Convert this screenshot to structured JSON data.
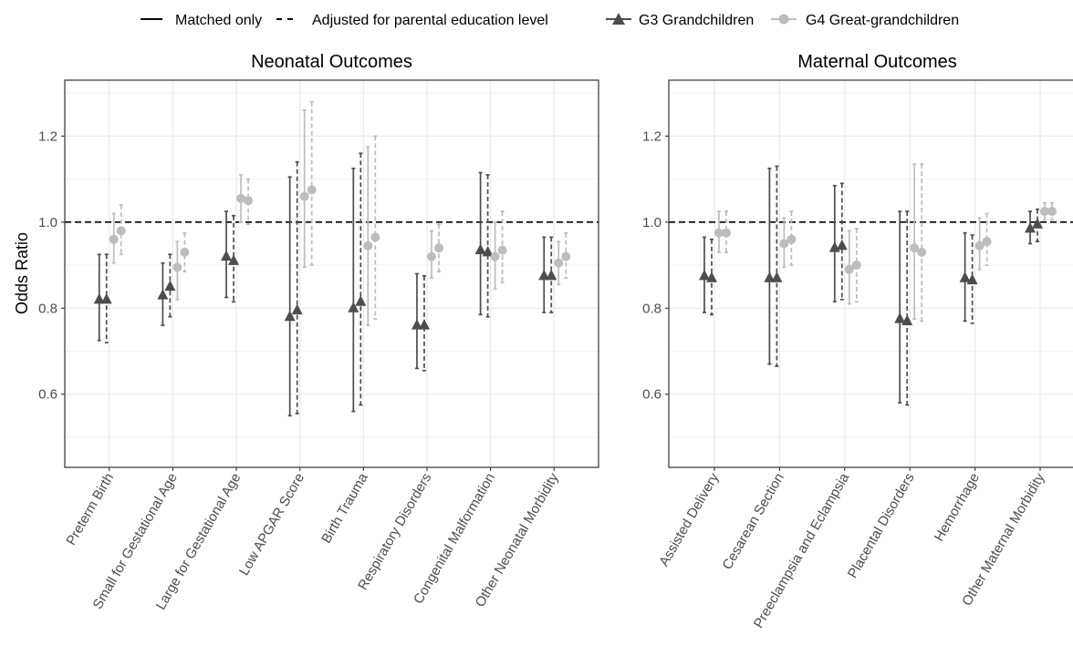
{
  "legend": {
    "linetype": [
      {
        "label": "Matched only",
        "dash": "solid"
      },
      {
        "label": "Adjusted for parental education level",
        "dash": "dashed"
      }
    ],
    "generation": [
      {
        "label": "G3 Grandchildren",
        "shape": "triangle",
        "color": "#4d4d4d"
      },
      {
        "label": "G4 Great-grandchildren",
        "shape": "circle",
        "color": "#bdbdbd"
      }
    ]
  },
  "chart_data": [
    {
      "type": "scatter",
      "subtype": "point-range (odds ratio with confidence interval)",
      "title": "Neonatal Outcomes",
      "ylabel": "Odds Ratio",
      "xlabel": "",
      "ylim": [
        0.43,
        1.33
      ],
      "yticks": [
        0.6,
        0.8,
        1.0,
        1.2
      ],
      "ytick_labels": [
        "0.6",
        "0.8",
        "1.0",
        "1.2"
      ],
      "reference_line": 1.0,
      "grid": true,
      "legend_position": "top",
      "categories": [
        "Preterm Birth",
        "Small for Gestational Age",
        "Large for Gestational Age",
        "Low APGAR Score",
        "Birth Trauma",
        "Respiratory Disorders",
        "Congenital Malformation",
        "Other Neonatal Morbidity"
      ],
      "series": [
        {
          "name": "G3 Grandchildren, Matched only",
          "generation": "G3",
          "adjustment": "matched",
          "values": [
            0.82,
            0.83,
            0.92,
            0.78,
            0.8,
            0.76,
            0.935,
            0.875
          ],
          "lower": [
            0.725,
            0.76,
            0.825,
            0.55,
            0.56,
            0.66,
            0.785,
            0.79
          ],
          "upper": [
            0.925,
            0.905,
            1.025,
            1.105,
            1.125,
            0.88,
            1.115,
            0.965
          ]
        },
        {
          "name": "G3 Grandchildren, Adjusted for parental education level",
          "generation": "G3",
          "adjustment": "adjusted",
          "values": [
            0.82,
            0.85,
            0.91,
            0.795,
            0.815,
            0.76,
            0.93,
            0.875
          ],
          "lower": [
            0.72,
            0.78,
            0.815,
            0.555,
            0.575,
            0.655,
            0.78,
            0.79
          ],
          "upper": [
            0.925,
            0.925,
            1.015,
            1.14,
            1.16,
            0.875,
            1.11,
            0.965
          ]
        },
        {
          "name": "G4 Great-grandchildren, Matched only",
          "generation": "G4",
          "adjustment": "matched",
          "values": [
            0.96,
            0.895,
            1.055,
            1.06,
            0.945,
            0.92,
            0.92,
            0.905
          ],
          "lower": [
            0.905,
            0.82,
            1.0,
            0.895,
            0.76,
            0.87,
            0.845,
            0.855
          ],
          "upper": [
            1.02,
            0.955,
            1.11,
            1.26,
            1.175,
            0.98,
            1.0,
            0.955
          ]
        },
        {
          "name": "G4 Great-grandchildren, Adjusted for parental education level",
          "generation": "G4",
          "adjustment": "adjusted",
          "values": [
            0.98,
            0.93,
            1.05,
            1.075,
            0.965,
            0.94,
            0.935,
            0.92
          ],
          "lower": [
            0.925,
            0.885,
            0.995,
            0.9,
            0.775,
            0.885,
            0.86,
            0.87
          ],
          "upper": [
            1.04,
            0.975,
            1.1,
            1.28,
            1.2,
            0.995,
            1.025,
            0.975
          ]
        }
      ]
    },
    {
      "type": "scatter",
      "subtype": "point-range (odds ratio with confidence interval)",
      "title": "Maternal Outcomes",
      "ylabel": "",
      "xlabel": "",
      "ylim": [
        0.43,
        1.33
      ],
      "yticks": [
        0.6,
        0.8,
        1.0,
        1.2
      ],
      "ytick_labels": [
        "0.6",
        "0.8",
        "1.0",
        "1.2"
      ],
      "reference_line": 1.0,
      "grid": true,
      "legend_position": "top",
      "categories": [
        "Assisted Delivery",
        "Cesarean Section",
        "Preeclampsia and Eclampsia",
        "Placental Disorders",
        "Hemorrhage",
        "Other Maternal Morbidity"
      ],
      "series": [
        {
          "name": "G3 Grandchildren, Matched only",
          "generation": "G3",
          "adjustment": "matched",
          "values": [
            0.875,
            0.87,
            0.94,
            0.775,
            0.87,
            0.985
          ],
          "lower": [
            0.79,
            0.67,
            0.815,
            0.58,
            0.77,
            0.95
          ],
          "upper": [
            0.965,
            1.125,
            1.085,
            1.025,
            0.975,
            1.025
          ]
        },
        {
          "name": "G3 Grandchildren, Adjusted for parental education level",
          "generation": "G3",
          "adjustment": "adjusted",
          "values": [
            0.87,
            0.87,
            0.945,
            0.77,
            0.865,
            0.995
          ],
          "lower": [
            0.785,
            0.665,
            0.82,
            0.575,
            0.765,
            0.955
          ],
          "upper": [
            0.96,
            1.13,
            1.09,
            1.025,
            0.97,
            1.03
          ]
        },
        {
          "name": "G4 Great-grandchildren, Matched only",
          "generation": "G4",
          "adjustment": "matched",
          "values": [
            0.975,
            0.95,
            0.89,
            0.94,
            0.945,
            1.025
          ],
          "lower": [
            0.93,
            0.895,
            0.81,
            0.775,
            0.89,
            1.005
          ],
          "upper": [
            1.025,
            1.01,
            0.98,
            1.135,
            1.01,
            1.045
          ]
        },
        {
          "name": "G4 Great-grandchildren, Adjusted for parental education level",
          "generation": "G4",
          "adjustment": "adjusted",
          "values": [
            0.975,
            0.96,
            0.9,
            0.93,
            0.955,
            1.025
          ],
          "lower": [
            0.93,
            0.9,
            0.815,
            0.77,
            0.9,
            1.005
          ],
          "upper": [
            1.025,
            1.025,
            0.985,
            1.135,
            1.02,
            1.045
          ]
        }
      ]
    }
  ]
}
